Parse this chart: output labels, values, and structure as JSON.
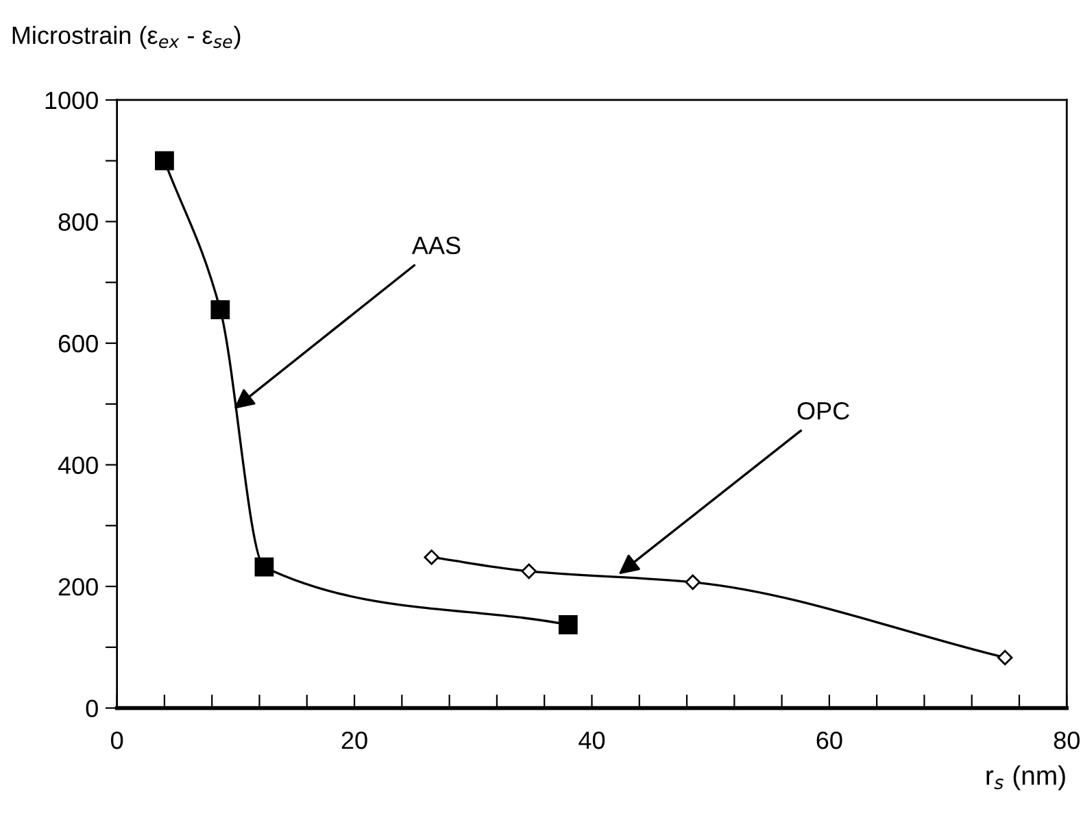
{
  "chart_data": {
    "type": "line",
    "ylabel": "Microstrain (ε$_{ex}$ - ε$_{se}$)",
    "xlabel": "r$_{s}$ (nm)",
    "series": [
      {
        "color": "#000000",
        "marker": "square",
        "x": [
          4.0,
          8.7,
          12.4,
          38.0
        ],
        "values": [
          900,
          655,
          232,
          137
        ]
      },
      {
        "color": "#000000",
        "marker": "diamond",
        "x": [
          26.5,
          34.7,
          48.5,
          74.8
        ],
        "values": [
          248,
          225,
          207,
          83
        ]
      }
    ],
    "annotations": [
      {
        "text": "AAS",
        "x": 9.6,
        "y": 488
      },
      {
        "text": "OPC",
        "x": 42.0,
        "y": 216
      }
    ],
    "xlim": [
      0,
      80
    ],
    "ylim": [
      0,
      1000
    ],
    "xticks": [
      0,
      {
        "value": 4,
        "label": null
      },
      {
        "value": 8,
        "label": null
      },
      {
        "value": 12,
        "label": null
      },
      {
        "value": 16,
        "label": null
      },
      20,
      {
        "value": 24,
        "label": null
      },
      {
        "value": 28,
        "label": null
      },
      {
        "value": 32,
        "label": null
      },
      {
        "value": 36,
        "label": null
      },
      40,
      {
        "value": 44,
        "label": null
      },
      {
        "value": 48,
        "label": null
      },
      {
        "value": 52,
        "label": null
      },
      {
        "value": 56,
        "label": null
      },
      60,
      {
        "value": 64,
        "label": null
      },
      {
        "value": 68,
        "label": null
      },
      {
        "value": 72,
        "label": null
      },
      {
        "value": 76,
        "label": null
      },
      80
    ],
    "yticks": [
      0,
      {
        "value": 100,
        "label": null
      },
      200,
      {
        "value": 300,
        "label": null
      },
      400,
      {
        "value": 500,
        "label": null
      },
      600,
      {
        "value": 700,
        "label": null
      },
      800,
      {
        "value": 900,
        "label": null
      },
      1000
    ],
    "grid": false,
    "legend": false
  }
}
